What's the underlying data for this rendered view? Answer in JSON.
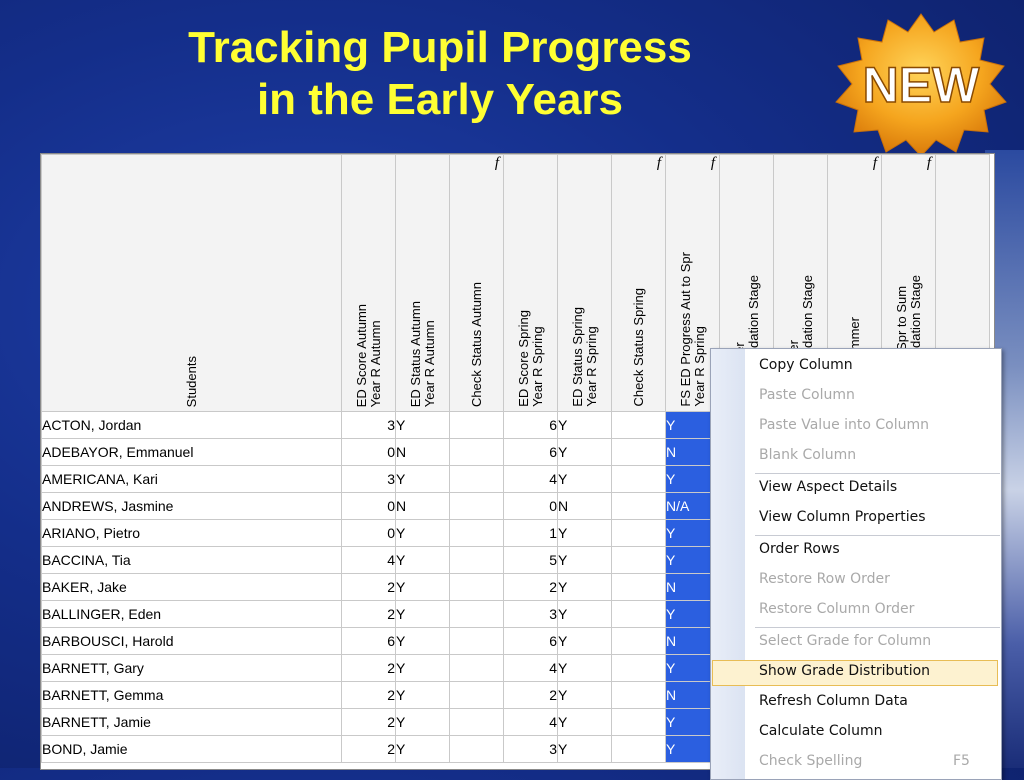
{
  "title": {
    "line1": "Tracking Pupil Progress",
    "line2": "in the Early Years"
  },
  "badge": {
    "text": "NEW",
    "color": "#f5a51e"
  },
  "grid": {
    "students_header": "Students",
    "columns": [
      {
        "label": "ED Score Autumn\nYear R Autumn",
        "fx": ""
      },
      {
        "label": "ED Status Autumn\nYear R Autumn",
        "fx": ""
      },
      {
        "label": "Check Status Autumn",
        "fx": "f"
      },
      {
        "label": "ED Score Spring\nYear R Spring",
        "fx": ""
      },
      {
        "label": "ED Status Spring\nYear R Spring",
        "fx": ""
      },
      {
        "label": "Check Status Spring",
        "fx": "f"
      },
      {
        "label": "FS ED Progress Aut to Spr\nYear R Spring",
        "fx": "f"
      },
      {
        "label": "re Summer\nears Foundation Stage",
        "fx": ""
      },
      {
        "label": "us Summer\nears Foundation Stage",
        "fx": ""
      },
      {
        "label": "Status Summer",
        "fx": "f"
      },
      {
        "label": "Progress Spr to Sum\nears Foundation Stage",
        "fx": "f"
      }
    ],
    "rows": [
      {
        "name": "ACTON, Jordan",
        "aut_score": "3",
        "aut_status": "Y",
        "spr_score": "6",
        "spr_status": "Y",
        "progress": "Y"
      },
      {
        "name": "ADEBAYOR, Emmanuel",
        "aut_score": "0",
        "aut_status": "N",
        "spr_score": "6",
        "spr_status": "Y",
        "progress": "N"
      },
      {
        "name": "AMERICANA, Kari",
        "aut_score": "3",
        "aut_status": "Y",
        "spr_score": "4",
        "spr_status": "Y",
        "progress": "Y"
      },
      {
        "name": "ANDREWS, Jasmine",
        "aut_score": "0",
        "aut_status": "N",
        "spr_score": "0",
        "spr_status": "N",
        "progress": "N/A"
      },
      {
        "name": "ARIANO, Pietro",
        "aut_score": "0",
        "aut_status": "Y",
        "spr_score": "1",
        "spr_status": "Y",
        "progress": "Y"
      },
      {
        "name": "BACCINA, Tia",
        "aut_score": "4",
        "aut_status": "Y",
        "spr_score": "5",
        "spr_status": "Y",
        "progress": "Y"
      },
      {
        "name": "BAKER, Jake",
        "aut_score": "2",
        "aut_status": "Y",
        "spr_score": "2",
        "spr_status": "Y",
        "progress": "N"
      },
      {
        "name": "BALLINGER, Eden",
        "aut_score": "2",
        "aut_status": "Y",
        "spr_score": "3",
        "spr_status": "Y",
        "progress": "Y"
      },
      {
        "name": "BARBOUSCI, Harold",
        "aut_score": "6",
        "aut_status": "Y",
        "spr_score": "6",
        "spr_status": "Y",
        "progress": "N"
      },
      {
        "name": "BARNETT, Gary",
        "aut_score": "2",
        "aut_status": "Y",
        "spr_score": "4",
        "spr_status": "Y",
        "progress": "Y"
      },
      {
        "name": "BARNETT, Gemma",
        "aut_score": "2",
        "aut_status": "Y",
        "spr_score": "2",
        "spr_status": "Y",
        "progress": "N"
      },
      {
        "name": "BARNETT, Jamie",
        "aut_score": "2",
        "aut_status": "Y",
        "spr_score": "4",
        "spr_status": "Y",
        "progress": "Y"
      },
      {
        "name": "BOND, Jamie",
        "aut_score": "2",
        "aut_status": "Y",
        "spr_score": "3",
        "spr_status": "Y",
        "progress": "Y"
      }
    ]
  },
  "context_menu": {
    "items": [
      {
        "label": "Copy Column",
        "enabled": true
      },
      {
        "label": "Paste Column",
        "enabled": false
      },
      {
        "label": "Paste Value into Column",
        "enabled": false
      },
      {
        "label": "Blank Column",
        "enabled": false
      },
      {
        "label": "View Aspect Details",
        "enabled": true
      },
      {
        "label": "View Column Properties",
        "enabled": true
      },
      {
        "label": "Order Rows",
        "enabled": true
      },
      {
        "label": "Restore Row Order",
        "enabled": false
      },
      {
        "label": "Restore Column Order",
        "enabled": false
      },
      {
        "label": "Select Grade for Column",
        "enabled": false
      },
      {
        "label": "Show Grade Distribution",
        "enabled": true,
        "highlighted": true
      },
      {
        "label": "Refresh Column Data",
        "enabled": true
      },
      {
        "label": "Calculate Column",
        "enabled": true
      },
      {
        "label": "Check Spelling",
        "enabled": false,
        "shortcut": "F5"
      }
    ]
  },
  "colors": {
    "title": "#ffff33",
    "selection": "#2b5fe0",
    "menu_highlight": "#fdf2d0"
  }
}
